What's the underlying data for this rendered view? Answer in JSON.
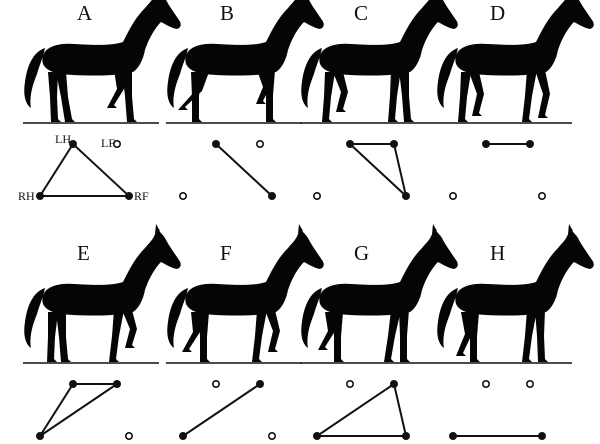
{
  "foot_labels": {
    "lh": "LH",
    "lf": "LF",
    "rh": "RH",
    "rf": "RF"
  },
  "colors": {
    "ink": "#111111",
    "background": "#ffffff"
  },
  "panels": [
    {
      "letter": "A",
      "support": [
        "LH",
        "RH",
        "RF"
      ],
      "airborne": [
        "LF"
      ]
    },
    {
      "letter": "B",
      "support": [
        "LH",
        "RF"
      ],
      "airborne": [
        "LF",
        "RH"
      ]
    },
    {
      "letter": "C",
      "support": [
        "LH",
        "LF",
        "RF"
      ],
      "airborne": [
        "RH"
      ]
    },
    {
      "letter": "D",
      "support": [
        "LH",
        "LF"
      ],
      "airborne": [
        "RH",
        "RF"
      ]
    },
    {
      "letter": "E",
      "support": [
        "LH",
        "LF",
        "RH"
      ],
      "airborne": [
        "RF"
      ]
    },
    {
      "letter": "F",
      "support": [
        "LF",
        "RH"
      ],
      "airborne": [
        "LH",
        "RF"
      ]
    },
    {
      "letter": "G",
      "support": [
        "LF",
        "RH",
        "RF"
      ],
      "airborne": [
        "LH"
      ]
    },
    {
      "letter": "H",
      "support": [
        "RH",
        "RF"
      ],
      "airborne": [
        "LH",
        "LF"
      ]
    }
  ]
}
